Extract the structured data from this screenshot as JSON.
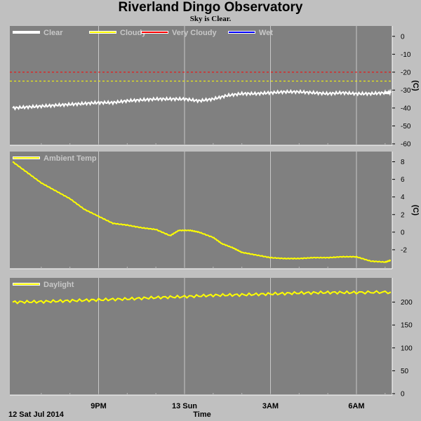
{
  "header": {
    "title": "Riverland Dingo Observatory",
    "subtitle": "Sky is Clear."
  },
  "colors": {
    "background": "#c0c0c0",
    "plot_bg": "#808080",
    "grid": "#c8c8c8",
    "clear": "#ffffff",
    "cloudy": "#ffff00",
    "very_cloudy": "#ff0000",
    "wet": "#0000ff",
    "legend_text": "#c8c8c8"
  },
  "x_axis": {
    "start_label": "12 Sat Jul 2014",
    "xlabel": "Time",
    "tick_labels": [
      "9PM",
      "13 Sun",
      "3AM",
      "6AM"
    ]
  },
  "chart_data": [
    {
      "type": "line",
      "title": "",
      "legend": [
        "Clear",
        "Cloudy",
        "Very Cloudy",
        "Wet"
      ],
      "ylabel": "(C)",
      "ylim": [
        -60,
        5
      ],
      "yticks": [
        0,
        -10,
        -20,
        -30,
        -40,
        -50,
        -60
      ],
      "x_unit": "hours after 18:00 12 Jul 2014",
      "xlim": [
        0,
        13.2
      ],
      "xticks_hours": [
        3,
        6,
        9,
        12
      ],
      "thresholds": [
        {
          "name": "Very Cloudy",
          "value": -20,
          "color": "#ff0000"
        },
        {
          "name": "Cloudy",
          "value": -25,
          "color": "#ffff00"
        }
      ],
      "series": [
        {
          "name": "Clear",
          "color": "#ffffff",
          "x": [
            0,
            0.5,
            1,
            1.5,
            2,
            2.5,
            3,
            3.5,
            4,
            4.5,
            5,
            5.5,
            6,
            6.5,
            7,
            7.5,
            8,
            8.5,
            9,
            9.5,
            10,
            10.5,
            11,
            11.5,
            12,
            12.5,
            13,
            13.2
          ],
          "y": [
            -40,
            -39.5,
            -39,
            -38.5,
            -38,
            -37.5,
            -37,
            -37,
            -36,
            -35.5,
            -35,
            -35,
            -35,
            -36,
            -35,
            -33,
            -32,
            -32,
            -31.5,
            -31,
            -31,
            -31.5,
            -32,
            -31.5,
            -32,
            -32,
            -31.5,
            -31.5
          ]
        }
      ]
    },
    {
      "type": "line",
      "title": "",
      "legend": [
        "Ambient Temp"
      ],
      "ylabel": "(C)",
      "ylim": [
        -4,
        9
      ],
      "yticks": [
        8,
        6,
        4,
        2,
        0,
        -2
      ],
      "x_unit": "hours after 18:00 12 Jul 2014",
      "xlim": [
        0,
        13.2
      ],
      "xticks_hours": [
        3,
        6,
        9,
        12
      ],
      "series": [
        {
          "name": "Ambient Temp",
          "color": "#ffff00",
          "x": [
            0,
            0.5,
            1,
            1.5,
            2,
            2.5,
            3,
            3.5,
            4,
            4.5,
            5,
            5.5,
            5.8,
            6.2,
            6.5,
            7,
            7.3,
            7.7,
            8,
            8.5,
            9,
            9.5,
            10,
            10.5,
            11,
            11.5,
            12,
            12.5,
            13,
            13.2
          ],
          "y": [
            8,
            6.8,
            5.6,
            4.7,
            3.8,
            2.6,
            1.8,
            1,
            0.8,
            0.5,
            0.3,
            -0.4,
            0.2,
            0.2,
            0,
            -0.6,
            -1.3,
            -1.8,
            -2.3,
            -2.6,
            -2.9,
            -3,
            -3,
            -2.9,
            -2.9,
            -2.8,
            -2.8,
            -3.3,
            -3.4,
            -3.2
          ]
        }
      ]
    },
    {
      "type": "line",
      "title": "",
      "legend": [
        "Daylight"
      ],
      "ylabel": "",
      "ylim": [
        0,
        250
      ],
      "yticks": [
        200,
        150,
        100,
        50,
        0
      ],
      "x_unit": "hours after 18:00 12 Jul 2014",
      "xlim": [
        0,
        13.2
      ],
      "xticks_hours": [
        3,
        6,
        9,
        12
      ],
      "series": [
        {
          "name": "Daylight",
          "color": "#ffff00",
          "x": [
            0,
            1,
            2,
            3,
            4,
            5,
            6,
            7,
            8,
            9,
            10,
            11,
            12,
            13.2
          ],
          "y": [
            200,
            201,
            203,
            205,
            207,
            210,
            212,
            215,
            216,
            218,
            220,
            221,
            221,
            222
          ]
        }
      ]
    }
  ]
}
